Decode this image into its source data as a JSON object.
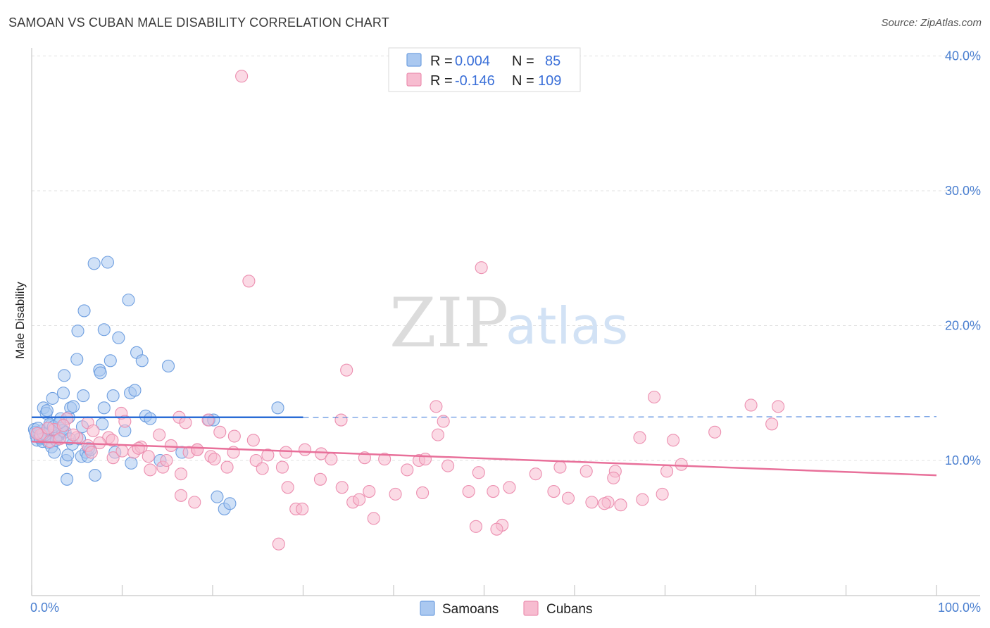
{
  "title": "SAMOAN VS CUBAN MALE DISABILITY CORRELATION CHART",
  "source": "Source: ZipAtlas.com",
  "watermark": {
    "zip": "ZIP",
    "atlas": "atlas"
  },
  "colors": {
    "samoans_fill": "#aac8f0",
    "samoans_stroke": "#6f9fe0",
    "samoans_line": "#2a6cd6",
    "cubans_fill": "#f7bcd0",
    "cubans_stroke": "#ec8fb0",
    "cubans_line": "#e8709a",
    "tick_text": "#4a7fd0",
    "grid": "#e0e0e0"
  },
  "legend": {
    "rows": [
      {
        "r_label": "R =",
        "r_value": "0.004",
        "n_label": "N =",
        "n_value": "85"
      },
      {
        "r_label": "R =",
        "r_value": "-0.146",
        "n_label": "N =",
        "n_value": "109"
      }
    ]
  },
  "chart_data": {
    "type": "scatter",
    "title": "SAMOAN VS CUBAN MALE DISABILITY CORRELATION CHART",
    "xlabel": "",
    "ylabel": "Male Disability",
    "xlim": [
      0,
      100
    ],
    "ylim": [
      0,
      42
    ],
    "x_tick_labels": [
      "0.0%",
      "100.0%"
    ],
    "y_ticks": [
      10,
      20,
      30,
      40
    ],
    "y_tick_labels": [
      "10.0%",
      "20.0%",
      "30.0%",
      "40.0%"
    ],
    "series": [
      {
        "name": "Samoans",
        "R": 0.004,
        "N": 85,
        "trend": {
          "x": [
            0,
            30
          ],
          "y": [
            13.2,
            13.2
          ],
          "dashed_to_x": 100
        },
        "points": [
          [
            0.3,
            12.3
          ],
          [
            0.5,
            11.8
          ],
          [
            0.6,
            11.5
          ],
          [
            0.8,
            12.0
          ],
          [
            1.0,
            11.6
          ],
          [
            1.1,
            12.2
          ],
          [
            1.2,
            11.4
          ],
          [
            1.3,
            13.9
          ],
          [
            1.4,
            11.9
          ],
          [
            1.6,
            13.5
          ],
          [
            1.7,
            13.7
          ],
          [
            1.8,
            12.0
          ],
          [
            1.9,
            11.3
          ],
          [
            2.1,
            12.6
          ],
          [
            2.2,
            11.0
          ],
          [
            2.3,
            14.6
          ],
          [
            2.5,
            10.6
          ],
          [
            2.6,
            12.1
          ],
          [
            2.8,
            11.8
          ],
          [
            3.0,
            11.9
          ],
          [
            3.2,
            13.1
          ],
          [
            3.3,
            12.4
          ],
          [
            3.5,
            15.0
          ],
          [
            3.6,
            16.3
          ],
          [
            3.7,
            12.1
          ],
          [
            3.8,
            10.0
          ],
          [
            3.9,
            8.6
          ],
          [
            4.0,
            10.4
          ],
          [
            4.1,
            13.2
          ],
          [
            4.3,
            13.9
          ],
          [
            4.5,
            11.2
          ],
          [
            4.6,
            14.0
          ],
          [
            5.0,
            17.5
          ],
          [
            5.1,
            19.6
          ],
          [
            5.3,
            11.6
          ],
          [
            5.5,
            10.3
          ],
          [
            5.6,
            12.5
          ],
          [
            5.7,
            14.8
          ],
          [
            5.8,
            21.1
          ],
          [
            6.0,
            10.6
          ],
          [
            6.2,
            10.3
          ],
          [
            6.3,
            10.9
          ],
          [
            6.5,
            10.8
          ],
          [
            6.9,
            24.6
          ],
          [
            7.0,
            8.9
          ],
          [
            7.5,
            16.7
          ],
          [
            7.6,
            16.5
          ],
          [
            7.8,
            12.7
          ],
          [
            8.0,
            19.7
          ],
          [
            8.0,
            13.9
          ],
          [
            8.4,
            24.7
          ],
          [
            8.7,
            17.4
          ],
          [
            9.0,
            14.8
          ],
          [
            9.2,
            10.6
          ],
          [
            9.6,
            19.1
          ],
          [
            10.3,
            12.2
          ],
          [
            10.7,
            21.9
          ],
          [
            10.9,
            15.0
          ],
          [
            11.0,
            9.8
          ],
          [
            11.4,
            15.2
          ],
          [
            11.6,
            18.0
          ],
          [
            12.2,
            17.4
          ],
          [
            12.6,
            13.3
          ],
          [
            13.1,
            13.1
          ],
          [
            14.2,
            10.0
          ],
          [
            15.1,
            17.0
          ],
          [
            16.6,
            10.6
          ],
          [
            19.6,
            13.0
          ],
          [
            20.1,
            13.0
          ],
          [
            20.5,
            7.3
          ],
          [
            21.3,
            6.4
          ],
          [
            21.9,
            6.8
          ],
          [
            27.2,
            13.9
          ],
          [
            1.1,
            11.8
          ],
          [
            2.0,
            12.7
          ],
          [
            3.4,
            12.2
          ],
          [
            4.2,
            11.6
          ],
          [
            0.4,
            12.1
          ],
          [
            1.5,
            11.9
          ],
          [
            2.4,
            12.5
          ],
          [
            0.9,
            11.7
          ],
          [
            1.3,
            12.0
          ],
          [
            2.7,
            11.5
          ],
          [
            3.1,
            12.8
          ],
          [
            0.7,
            12.4
          ]
        ]
      },
      {
        "name": "Cubans",
        "R": -0.146,
        "N": 109,
        "trend": {
          "x": [
            0,
            100
          ],
          "y": [
            11.4,
            8.9
          ]
        },
        "points": [
          [
            23.2,
            38.5
          ],
          [
            49.7,
            24.3
          ],
          [
            24.0,
            23.3
          ],
          [
            34.8,
            16.7
          ],
          [
            68.8,
            14.7
          ],
          [
            44.7,
            14.0
          ],
          [
            79.5,
            14.1
          ],
          [
            82.5,
            14.0
          ],
          [
            34.2,
            13.0
          ],
          [
            45.5,
            12.9
          ],
          [
            19.5,
            13.0
          ],
          [
            16.3,
            13.2
          ],
          [
            9.9,
            13.5
          ],
          [
            10.3,
            12.9
          ],
          [
            17.0,
            12.8
          ],
          [
            6.2,
            12.8
          ],
          [
            3.9,
            13.1
          ],
          [
            6.8,
            12.2
          ],
          [
            8.5,
            11.7
          ],
          [
            14.1,
            11.9
          ],
          [
            20.8,
            12.1
          ],
          [
            22.4,
            11.8
          ],
          [
            24.5,
            11.5
          ],
          [
            44.9,
            11.9
          ],
          [
            67.2,
            11.7
          ],
          [
            70.9,
            11.5
          ],
          [
            75.5,
            12.1
          ],
          [
            81.8,
            12.7
          ],
          [
            6.2,
            11.1
          ],
          [
            6.6,
            10.6
          ],
          [
            9.0,
            10.2
          ],
          [
            10.0,
            10.7
          ],
          [
            11.3,
            10.6
          ],
          [
            12.9,
            10.3
          ],
          [
            15.4,
            11.1
          ],
          [
            17.4,
            10.6
          ],
          [
            18.3,
            10.8
          ],
          [
            19.8,
            10.3
          ],
          [
            20.2,
            10.1
          ],
          [
            22.3,
            10.6
          ],
          [
            24.8,
            10.0
          ],
          [
            26.1,
            10.4
          ],
          [
            28.1,
            10.6
          ],
          [
            30.2,
            10.8
          ],
          [
            32.0,
            10.5
          ],
          [
            36.8,
            10.2
          ],
          [
            41.5,
            9.3
          ],
          [
            42.8,
            10.0
          ],
          [
            43.5,
            10.1
          ],
          [
            46.0,
            9.6
          ],
          [
            49.4,
            9.1
          ],
          [
            55.7,
            9.0
          ],
          [
            58.4,
            9.5
          ],
          [
            61.3,
            9.2
          ],
          [
            64.5,
            9.2
          ],
          [
            70.2,
            9.2
          ],
          [
            71.8,
            9.7
          ],
          [
            13.1,
            9.3
          ],
          [
            14.5,
            9.5
          ],
          [
            16.5,
            9.0
          ],
          [
            18.3,
            10.8
          ],
          [
            21.6,
            9.5
          ],
          [
            25.5,
            9.4
          ],
          [
            27.7,
            9.5
          ],
          [
            31.9,
            8.6
          ],
          [
            34.3,
            8.0
          ],
          [
            37.3,
            7.7
          ],
          [
            40.2,
            7.5
          ],
          [
            43.2,
            7.6
          ],
          [
            48.3,
            7.7
          ],
          [
            51.0,
            7.7
          ],
          [
            52.8,
            8.0
          ],
          [
            57.7,
            7.7
          ],
          [
            61.9,
            6.9
          ],
          [
            63.7,
            6.9
          ],
          [
            65.1,
            6.7
          ],
          [
            67.5,
            7.1
          ],
          [
            69.7,
            7.5
          ],
          [
            16.5,
            7.4
          ],
          [
            18.0,
            6.9
          ],
          [
            28.3,
            8.0
          ],
          [
            29.2,
            6.4
          ],
          [
            29.9,
            6.4
          ],
          [
            35.5,
            6.9
          ],
          [
            36.2,
            7.1
          ],
          [
            37.8,
            5.7
          ],
          [
            49.1,
            5.1
          ],
          [
            52.0,
            5.2
          ],
          [
            51.4,
            4.9
          ],
          [
            27.3,
            3.8
          ],
          [
            63.3,
            6.8
          ],
          [
            59.3,
            7.2
          ],
          [
            64.3,
            8.7
          ],
          [
            2.5,
            12.3
          ],
          [
            1.0,
            11.9
          ],
          [
            3.5,
            12.6
          ],
          [
            5.0,
            11.7
          ],
          [
            7.5,
            11.3
          ],
          [
            12.1,
            11.0
          ],
          [
            2.0,
            11.4
          ],
          [
            4.6,
            11.9
          ],
          [
            0.6,
            12.0
          ],
          [
            1.8,
            12.4
          ],
          [
            3.1,
            11.6
          ],
          [
            8.9,
            11.5
          ],
          [
            11.8,
            10.9
          ],
          [
            14.9,
            10.0
          ],
          [
            33.1,
            10.1
          ],
          [
            39.0,
            10.1
          ]
        ]
      }
    ]
  },
  "bottom_legend": {
    "items": [
      "Samoans",
      "Cubans"
    ]
  }
}
